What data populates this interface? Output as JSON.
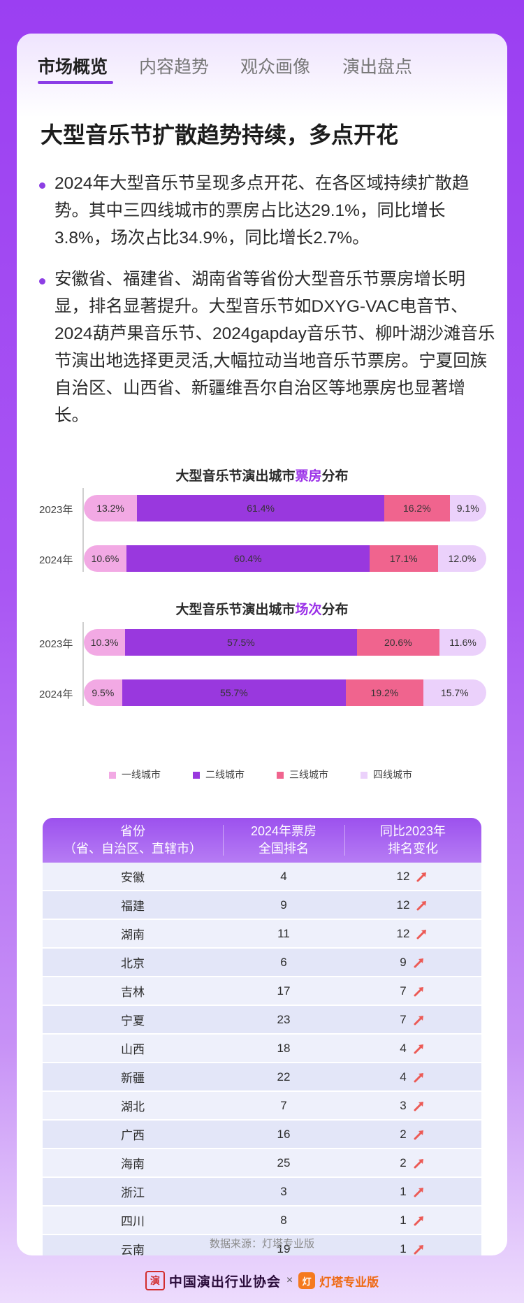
{
  "tabs": [
    {
      "label": "市场概览",
      "active": true
    },
    {
      "label": "内容趋势",
      "active": false
    },
    {
      "label": "观众画像",
      "active": false
    },
    {
      "label": "演出盘点",
      "active": false
    }
  ],
  "heading": "大型音乐节扩散趋势持续，多点开花",
  "paragraphs": [
    "2024年大型音乐节呈现多点开花、在各区域持续扩散趋势。其中三四线城市的票房占比达29.1%，同比增长3.8%，场次占比34.9%，同比增长2.7%。",
    "安徽省、福建省、湖南省等省份大型音乐节票房增长明显，排名显著提升。大型音乐节如DXYG-VAC电音节、2024葫芦果音乐节、2024gapday音乐节、柳叶湖沙滩音乐节演出地选择更灵活,大幅拉动当地音乐节票房。宁夏回族自治区、山西省、新疆维吾尔自治区等地票房也显著增长。"
  ],
  "colors": {
    "tier1": "#f2a9e4",
    "tier2": "#9938de",
    "tier3": "#f0648e",
    "tier4": "#ebd1fb",
    "accent": "#9a2fe8"
  },
  "chart_data": [
    {
      "type": "bar",
      "stacked": true,
      "orientation": "horizontal",
      "title_prefix": "大型音乐节演出城市",
      "title_highlight": "票房",
      "title_suffix": "分布",
      "categories": [
        "2023年",
        "2024年"
      ],
      "series": [
        {
          "name": "一线城市",
          "values": [
            13.2,
            10.6
          ],
          "labels": [
            "13.2%",
            "10.6%"
          ]
        },
        {
          "name": "二线城市",
          "values": [
            61.4,
            60.4
          ],
          "labels": [
            "61.4%",
            "60.4%"
          ]
        },
        {
          "name": "三线城市",
          "values": [
            16.2,
            17.1
          ],
          "labels": [
            "16.2%",
            "17.1%"
          ]
        },
        {
          "name": "四线城市",
          "values": [
            9.1,
            12.0
          ],
          "labels": [
            "9.1%",
            "12.0%"
          ]
        }
      ]
    },
    {
      "type": "bar",
      "stacked": true,
      "orientation": "horizontal",
      "title_prefix": "大型音乐节演出城市",
      "title_highlight": "场次",
      "title_suffix": "分布",
      "categories": [
        "2023年",
        "2024年"
      ],
      "series": [
        {
          "name": "一线城市",
          "values": [
            10.3,
            9.5
          ],
          "labels": [
            "10.3%",
            "9.5%"
          ]
        },
        {
          "name": "二线城市",
          "values": [
            57.5,
            55.7
          ],
          "labels": [
            "57.5%",
            "55.7%"
          ]
        },
        {
          "name": "三线城市",
          "values": [
            20.6,
            19.2
          ],
          "labels": [
            "20.6%",
            "19.2%"
          ]
        },
        {
          "name": "四线城市",
          "values": [
            11.6,
            15.7
          ],
          "labels": [
            "11.6%",
            "15.7%"
          ]
        }
      ],
      "legend": [
        "一线城市",
        "二线城市",
        "三线城市",
        "四线城市"
      ],
      "legend_position": "bottom"
    }
  ],
  "table": {
    "headers": [
      [
        "省份",
        "（省、自治区、直辖市）"
      ],
      [
        "2024年票房",
        "全国排名"
      ],
      [
        "同比2023年",
        "排名变化"
      ]
    ],
    "rows": [
      {
        "province": "安徽",
        "rank": "4",
        "change": "12"
      },
      {
        "province": "福建",
        "rank": "9",
        "change": "12"
      },
      {
        "province": "湖南",
        "rank": "11",
        "change": "12"
      },
      {
        "province": "北京",
        "rank": "6",
        "change": "9"
      },
      {
        "province": "吉林",
        "rank": "17",
        "change": "7"
      },
      {
        "province": "宁夏",
        "rank": "23",
        "change": "7"
      },
      {
        "province": "山西",
        "rank": "18",
        "change": "4"
      },
      {
        "province": "新疆",
        "rank": "22",
        "change": "4"
      },
      {
        "province": "湖北",
        "rank": "7",
        "change": "3"
      },
      {
        "province": "广西",
        "rank": "16",
        "change": "2"
      },
      {
        "province": "海南",
        "rank": "25",
        "change": "2"
      },
      {
        "province": "浙江",
        "rank": "3",
        "change": "1"
      },
      {
        "province": "四川",
        "rank": "8",
        "change": "1"
      },
      {
        "province": "云南",
        "rank": "19",
        "change": "1"
      }
    ],
    "row_icon": "arrow-up-icon"
  },
  "source": "数据来源：灯塔专业版",
  "footer": {
    "logo1_seal": "演",
    "logo1_text": "中国演出行业协会",
    "separator": "×",
    "logo2_badge": "灯",
    "logo2_text": "灯塔专业版"
  }
}
